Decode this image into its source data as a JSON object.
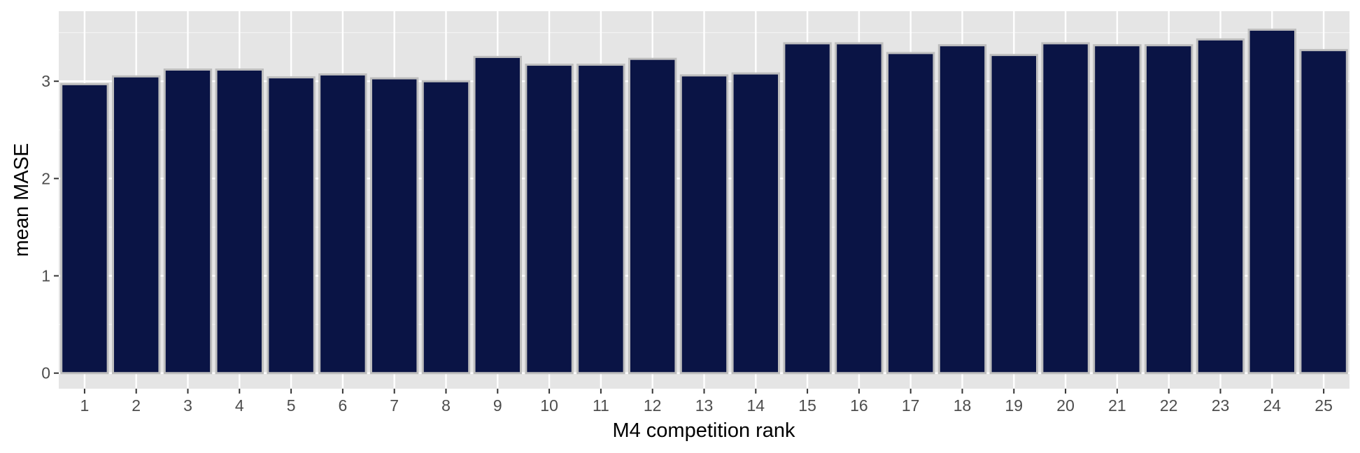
{
  "chart_data": {
    "type": "bar",
    "title": "",
    "xlabel": "M4 competition rank",
    "ylabel": "mean MASE",
    "categories": [
      "1",
      "2",
      "3",
      "4",
      "5",
      "6",
      "7",
      "8",
      "9",
      "10",
      "11",
      "12",
      "13",
      "14",
      "15",
      "16",
      "17",
      "18",
      "19",
      "20",
      "21",
      "22",
      "23",
      "24",
      "25"
    ],
    "values": [
      2.97,
      3.05,
      3.12,
      3.12,
      3.04,
      3.07,
      3.03,
      3.0,
      3.25,
      3.17,
      3.17,
      3.23,
      3.06,
      3.08,
      3.39,
      3.39,
      3.29,
      3.37,
      3.27,
      3.39,
      3.37,
      3.37,
      3.43,
      3.53,
      3.32
    ],
    "ylim": [
      -0.16,
      3.72
    ],
    "yticks": [
      0,
      1,
      2,
      3
    ],
    "grid": true,
    "legend": "none",
    "colors": {
      "bar_fill": "#0a1445",
      "bar_stroke": "#bebebe",
      "panel_bg": "#e5e5e5",
      "grid_major": "#ffffff",
      "grid_minor": "#f2f2f2"
    }
  }
}
